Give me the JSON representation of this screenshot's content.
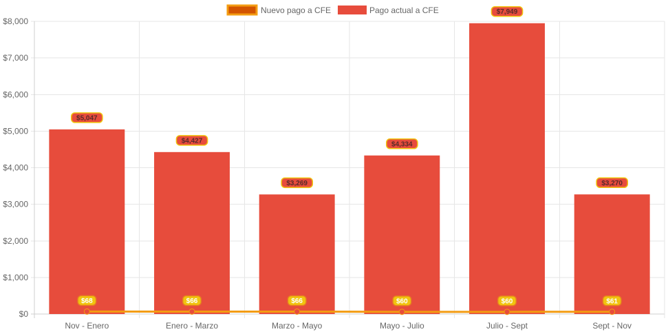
{
  "chart_data": {
    "type": "bar",
    "categories": [
      "Nov - Enero",
      "Enero - Marzo",
      "Marzo - Mayo",
      "Mayo - Julio",
      "Julio - Sept",
      "Sept - Nov"
    ],
    "series": [
      {
        "name": "Nuevo pago a CFE",
        "type": "line",
        "values": [
          68,
          66,
          66,
          60,
          60,
          61
        ],
        "labels": [
          "$68",
          "$66",
          "$66",
          "$60",
          "$60",
          "$61"
        ],
        "color": "#F39C12",
        "point_color": "#E74C3C"
      },
      {
        "name": "Pago actual a CFE",
        "type": "bar",
        "values": [
          5047,
          4427,
          3269,
          4334,
          7949,
          3270
        ],
        "labels": [
          "$5,047",
          "$4,427",
          "$3,269",
          "$4,334",
          "$7,949",
          "$3,270"
        ],
        "color": "#E74C3C"
      }
    ],
    "ylim": [
      0,
      8000
    ],
    "yticks": [
      0,
      1000,
      2000,
      3000,
      4000,
      5000,
      6000,
      7000,
      8000
    ],
    "ytick_labels": [
      "$0",
      "$1,000",
      "$2,000",
      "$3,000",
      "$4,000",
      "$5,000",
      "$6,000",
      "$7,000",
      "$8,000"
    ],
    "legend_position": "top-center",
    "grid": true,
    "title": "",
    "xlabel": "",
    "ylabel": ""
  },
  "legend": {
    "items": [
      "Nuevo pago a CFE",
      "Pago actual a CFE"
    ]
  }
}
